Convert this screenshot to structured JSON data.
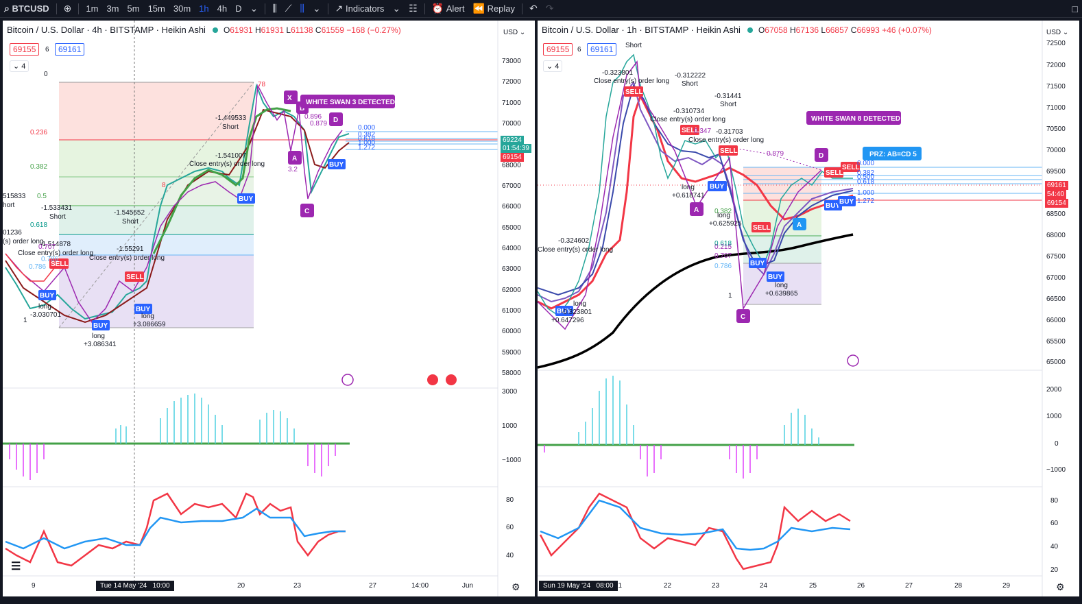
{
  "toolbar": {
    "symbol": "BTCUSD",
    "intervals": [
      "1m",
      "3m",
      "5m",
      "15m",
      "30m",
      "1h",
      "4h",
      "D"
    ],
    "active_interval": "1h",
    "indicators_label": "Indicators",
    "alert_label": "Alert",
    "replay_label": "Replay"
  },
  "left": {
    "title": "Bitcoin / U.S. Dollar · 4h · BITSTAMP · Heikin Ashi",
    "ohlc": {
      "o": "61931",
      "h": "61931",
      "l": "61138",
      "c": "61559",
      "chg": "−168 (−0.27%)"
    },
    "box_sell": "69155",
    "box_mid": "6",
    "box_buy": "69161",
    "collapse": "4",
    "currency": "USD",
    "y_ticks": [
      "73000",
      "72000",
      "71000",
      "70000",
      "69000",
      "68000",
      "67000",
      "66000",
      "65000",
      "64000",
      "63000",
      "62000",
      "61000",
      "60000",
      "59000",
      "58000"
    ],
    "price_tags": {
      "current": "69224",
      "countdown": "01:54:39",
      "sell": "69154"
    },
    "osc_ticks": [
      "3000",
      "1000",
      "−1000"
    ],
    "rsi_ticks": [
      "80",
      "60",
      "40"
    ],
    "x_ticks": [
      "9",
      "20",
      "23",
      "27",
      "14:00",
      "Jun"
    ],
    "cursor_date": "Tue 14 May '24",
    "cursor_time": "10:00",
    "fib_levels": [
      "0",
      "0.236",
      "0.382",
      "0.5",
      "0.618",
      "0.786",
      "1"
    ],
    "signal_banner": "WHITE SWAN 3 DETECTED",
    "pattern_points": [
      "X",
      "A",
      "B",
      "C",
      "D"
    ],
    "fib_small": [
      "0.000",
      "0.382",
      "0.618",
      "1.000",
      "1.272"
    ],
    "annotations": [
      {
        "text": "-1.449533"
      },
      {
        "text": "Short"
      },
      {
        "text": "-1.541007"
      },
      {
        "text": "Close entry(s) order long"
      },
      {
        "text": "-1.545652"
      },
      {
        "text": "Short"
      },
      {
        "text": "-1.55291"
      },
      {
        "text": "Close entry(s) order long"
      },
      {
        "text": "-1.533431"
      },
      {
        "text": "Short"
      },
      {
        "text": "-1.514878"
      },
      {
        "text": "Close entry(s) order long"
      },
      {
        "text": "long"
      },
      {
        "text": "+3.086341"
      },
      {
        "text": "long"
      },
      {
        "text": "+3.086659"
      },
      {
        "text": "long"
      },
      {
        "text": "-3.030701"
      },
      {
        "text": "515833"
      },
      {
        "text": "hort"
      },
      {
        "text": "01236"
      },
      {
        "text": "(s) order long"
      },
      {
        "text": "0.707"
      },
      {
        "text": "0.786"
      },
      {
        "text": "0.896"
      },
      {
        "text": "0.879"
      },
      {
        "text": "3.2"
      },
      {
        "text": "78"
      },
      {
        "text": "8"
      }
    ],
    "badges": [
      "BUY",
      "SELL",
      "BUY",
      "SELL",
      "BUY",
      "BUY",
      "BUY",
      "BUY"
    ]
  },
  "right": {
    "title": "Bitcoin / U.S. Dollar · 1h · BITSTAMP · Heikin Ashi",
    "ohlc": {
      "o": "67058",
      "h": "67136",
      "l": "66857",
      "c": "66993",
      "chg": "+46 (+0.07%)"
    },
    "box_sell": "69155",
    "box_mid": "6",
    "box_buy": "69161",
    "collapse": "4",
    "currency": "USD",
    "y_ticks": [
      "72500",
      "72000",
      "71500",
      "71000",
      "70500",
      "70000",
      "69500",
      "69000",
      "68500",
      "68000",
      "67500",
      "67000",
      "66500",
      "66000",
      "65500",
      "65000"
    ],
    "price_tags": {
      "current": "69161",
      "countdown": "54:40",
      "sell": "69154"
    },
    "osc_ticks": [
      "2000",
      "1000",
      "0",
      "−1000"
    ],
    "rsi_ticks": [
      "80",
      "60",
      "40",
      "20"
    ],
    "x_ticks": [
      "21",
      "22",
      "23",
      "24",
      "25",
      "26",
      "27",
      "28",
      "29"
    ],
    "cursor_date": "Sun 19 May '24",
    "cursor_time": "08:00",
    "signal_banner": "WHITE SWAN 8 DETECTED",
    "prz_label": "PRZ: AB=CD 5",
    "pattern_points": [
      "A",
      "C",
      "D",
      "A"
    ],
    "fib_small": [
      "0.000",
      "0.382",
      "0.500",
      "0.618",
      "1.000",
      "1.272"
    ],
    "fib_levels": [
      "0.382",
      "0.618",
      "0.707",
      "0.786",
      "1"
    ],
    "annotations": [
      {
        "text": "Short"
      },
      {
        "text": "-0.323801"
      },
      {
        "text": "Close entry(s) order long"
      },
      {
        "text": "-0.312222"
      },
      {
        "text": "Short"
      },
      {
        "text": "-0.31441"
      },
      {
        "text": "Short"
      },
      {
        "text": "-0.310734"
      },
      {
        "text": "Close entry(s) order long"
      },
      {
        "text": "-0.31703"
      },
      {
        "text": "Close entry(s) order long"
      },
      {
        "text": "0.879"
      },
      {
        "text": "long"
      },
      {
        "text": "+0.618741"
      },
      {
        "text": "long"
      },
      {
        "text": "+0.625925"
      },
      {
        "text": "long"
      },
      {
        "text": "+0.639865"
      },
      {
        "text": "-0.324602"
      },
      {
        "text": "Close entry(s) order long"
      },
      {
        "text": "long"
      },
      {
        "text": "+0.647296"
      },
      {
        "text": "-0.323801"
      },
      {
        "text": "0.347"
      },
      {
        "text": "0.215"
      }
    ],
    "badges": [
      "SELL",
      "SELL",
      "SELL",
      "BUY",
      "SELL",
      "BUY",
      "BUY",
      "SELL",
      "SELL",
      "BUY",
      "BUY",
      "BUY"
    ]
  }
}
